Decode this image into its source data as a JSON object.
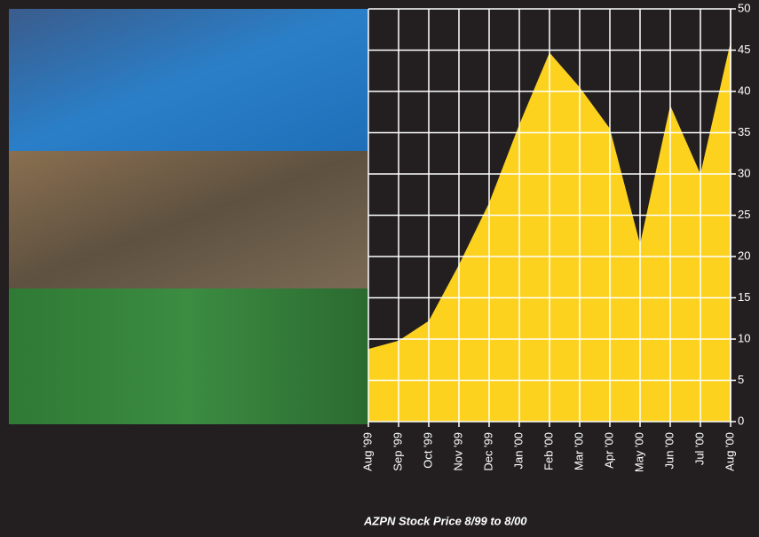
{
  "chart_data": {
    "type": "area",
    "title": "AZPN Stock Price 8/99 to 8/00",
    "categories": [
      "Aug '99",
      "Sep '99",
      "Oct '99",
      "Nov '99",
      "Dec '99",
      "Jan '00",
      "Feb '00",
      "Mar '00",
      "Apr '00",
      "May '00",
      "Jun '00",
      "Jul '00",
      "Aug '00"
    ],
    "values": [
      8.8,
      9.8,
      12.2,
      19,
      26.5,
      36,
      44.7,
      40.5,
      35.5,
      21.5,
      38.3,
      30,
      46
    ],
    "color": "#fcd21f",
    "ylim": [
      0,
      50
    ],
    "yticks": [
      0,
      5,
      10,
      15,
      20,
      25,
      30,
      35,
      40,
      45,
      50
    ],
    "grid": true
  }
}
